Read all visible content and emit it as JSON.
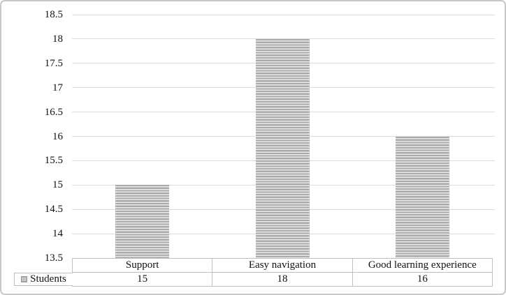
{
  "chart_data": {
    "type": "bar",
    "title": "",
    "categories": [
      "Support",
      "Easy navigation",
      "Good learning experience"
    ],
    "series": [
      {
        "name": "Students",
        "values": [
          15,
          18,
          16
        ]
      }
    ],
    "ylim": [
      13.5,
      18.5
    ],
    "yticks": [
      18.5,
      18,
      17.5,
      17,
      16.5,
      16,
      15.5,
      15,
      14.5,
      14,
      13.5
    ],
    "grid": "horizontal-major",
    "legend_position": "data-table-row-left",
    "data_table_shown": true,
    "colors": {
      "bar_stripe_dark": "#ababab",
      "bar_stripe_light": "#e9e9e9",
      "gridline": "#dcdcdc",
      "table_border": "#bfbfbf",
      "text": "#111111",
      "frame_border": "#c9c9c9",
      "background": "#ffffff"
    }
  }
}
